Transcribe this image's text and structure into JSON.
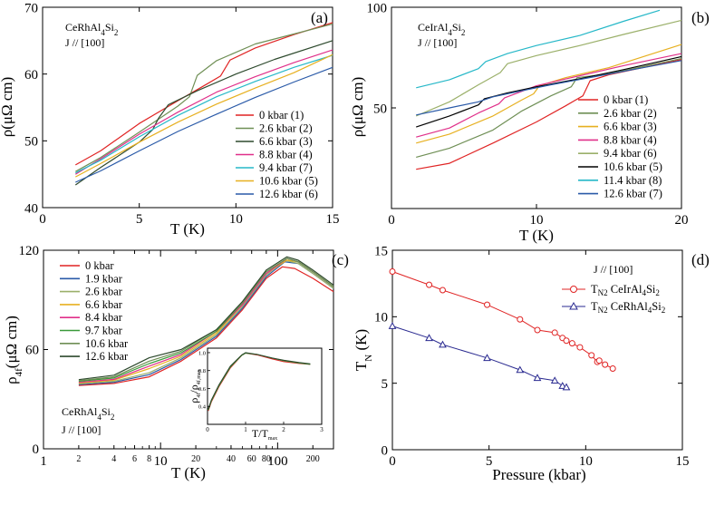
{
  "chart_data": [
    {
      "id": "a",
      "type": "line",
      "panel_label": "(a)",
      "title": "",
      "compound": "CeRhAl4Si2",
      "current": "J // [100]",
      "xlabel": "T (K)",
      "ylabel": "ρ(μΩ cm)",
      "xlim": [
        0,
        15
      ],
      "ylim": [
        40,
        70
      ],
      "xticks": [
        0,
        5,
        10,
        15
      ],
      "yticks": [
        40,
        50,
        60,
        70
      ],
      "legend": "bottom-right",
      "series": [
        {
          "name": "0 kbar (1)",
          "color": "#e02424",
          "x": [
            1.7,
            3,
            5,
            7,
            8.5,
            9.2,
            9.7,
            11,
            13,
            15
          ],
          "y": [
            46.4,
            48.5,
            52.6,
            56.0,
            58.5,
            59.7,
            62.1,
            63.9,
            65.9,
            67.7
          ]
        },
        {
          "name": "2.6 kbar (2)",
          "color": "#6f8f55",
          "x": [
            1.7,
            3,
            5,
            7,
            7.6,
            8.0,
            9,
            11,
            13,
            15
          ],
          "y": [
            45.4,
            47.5,
            51.3,
            55.2,
            56.6,
            59.8,
            62.0,
            64.5,
            66.0,
            67.5
          ]
        },
        {
          "name": "6.6 kbar (3)",
          "color": "#2e4a2e",
          "x": [
            1.7,
            3,
            5,
            5.7,
            6.0,
            6.5,
            8,
            10,
            12,
            15
          ],
          "y": [
            43.4,
            46.0,
            49.8,
            51.7,
            53.4,
            55.4,
            57.5,
            60.0,
            62.2,
            65.0
          ]
        },
        {
          "name": "8.8 kbar (4)",
          "color": "#e0308a",
          "x": [
            1.7,
            3,
            5,
            7,
            9,
            11,
            13,
            15
          ],
          "y": [
            45.0,
            47.3,
            51.0,
            54.3,
            57.3,
            59.6,
            61.7,
            63.6
          ]
        },
        {
          "name": "9.4 kbar (7)",
          "color": "#26b8c8",
          "x": [
            1.7,
            3,
            5,
            7,
            9,
            11,
            13,
            15
          ],
          "y": [
            45.2,
            47.1,
            50.6,
            53.8,
            56.6,
            58.9,
            61.0,
            62.8
          ]
        },
        {
          "name": "10.6 kbar (5)",
          "color": "#e7b020",
          "x": [
            1.7,
            3,
            5,
            7,
            9,
            11,
            13,
            15
          ],
          "y": [
            44.6,
            46.6,
            49.8,
            52.8,
            55.5,
            57.9,
            60.2,
            62.9
          ]
        },
        {
          "name": "12.6 kbar (6)",
          "color": "#2a5aa8",
          "x": [
            1.7,
            3,
            5,
            7,
            9,
            11,
            13,
            15
          ],
          "y": [
            43.8,
            45.5,
            48.5,
            51.4,
            54.0,
            56.5,
            58.8,
            61.0
          ]
        }
      ]
    },
    {
      "id": "b",
      "type": "line",
      "panel_label": "(b)",
      "title": "",
      "compound": "CeIrAl4Si2",
      "current": "J // [100]",
      "xlabel": "T (K)",
      "ylabel": "ρ(μΩ cm)",
      "xlim": [
        0,
        20
      ],
      "ylim": [
        0,
        100
      ],
      "xticks": [
        0,
        10,
        20
      ],
      "yticks": [
        50,
        100
      ],
      "legend": "right",
      "series": [
        {
          "name": "0 kbar (1)",
          "color": "#e02424",
          "x": [
            1.7,
            4,
            7,
            10,
            12,
            13.2,
            13.7,
            15,
            17,
            20
          ],
          "y": [
            19.5,
            22.5,
            32.5,
            43.0,
            51.0,
            56.0,
            63.5,
            66.5,
            69.5,
            74.0
          ]
        },
        {
          "name": "2.6 kbar (2)",
          "color": "#6f8f55",
          "x": [
            1.7,
            4,
            7,
            9,
            11,
            12.4,
            12.8,
            15,
            20
          ],
          "y": [
            25.5,
            30.0,
            39.0,
            48.5,
            56.0,
            60.5,
            65.0,
            67.0,
            74.5
          ]
        },
        {
          "name": "6.6 kbar (3)",
          "color": "#e7b020",
          "x": [
            1.7,
            4,
            7,
            9,
            9.8,
            10.2,
            12,
            15,
            20
          ],
          "y": [
            32.5,
            37.0,
            46.0,
            54.0,
            57.0,
            61.0,
            65.0,
            70.0,
            81.5
          ]
        },
        {
          "name": "8.8 kbar (4)",
          "color": "#e0308a",
          "x": [
            1.7,
            4,
            6,
            7.4,
            7.8,
            10,
            13,
            16,
            20
          ],
          "y": [
            35.5,
            40.0,
            47.5,
            52.0,
            55.0,
            61.0,
            66.0,
            71.0,
            77.0
          ]
        },
        {
          "name": "9.4 kbar (6)",
          "color": "#9bb06a",
          "x": [
            1.7,
            4,
            6,
            7.5,
            8.0,
            10,
            13,
            16,
            20
          ],
          "y": [
            46.0,
            53.0,
            61.5,
            67.5,
            72.0,
            76.0,
            81.0,
            86.5,
            93.5
          ]
        },
        {
          "name": "10.6 kbar (5)",
          "color": "#000000",
          "x": [
            1.7,
            4,
            6,
            6.4,
            8,
            10,
            13,
            16,
            20
          ],
          "y": [
            40.5,
            46.0,
            51.5,
            54.5,
            57.5,
            60.5,
            64.5,
            69.0,
            75.5
          ]
        },
        {
          "name": "11.4 kbar (8)",
          "color": "#26b8c8",
          "x": [
            1.7,
            4,
            6,
            6.5,
            8,
            10,
            13,
            16,
            18.5
          ],
          "y": [
            60.0,
            64.0,
            69.5,
            73.0,
            77.0,
            81.0,
            86.0,
            93.0,
            98.5
          ]
        },
        {
          "name": "12.6 kbar (7)",
          "color": "#2a5aa8",
          "x": [
            1.7,
            4,
            6,
            7,
            9,
            11,
            14,
            17,
            20
          ],
          "y": [
            46.5,
            50.0,
            53.0,
            55.5,
            58.5,
            61.5,
            65.5,
            69.5,
            73.5
          ]
        }
      ]
    },
    {
      "id": "c",
      "type": "line",
      "xscale": "log",
      "panel_label": "(c)",
      "title": "",
      "compound": "CeRhAl4Si2",
      "current": "J // [100]",
      "xlabel": "T (K)",
      "ylabel": "ρ4f(μΩ cm)",
      "xlim": [
        1,
        300
      ],
      "ylim": [
        0,
        120
      ],
      "xticks_major": [
        1,
        10,
        100
      ],
      "xticks_minor": [
        2,
        4,
        6,
        8,
        20,
        40,
        60,
        80,
        200
      ],
      "yticks": [
        0,
        60,
        120
      ],
      "legend": "top-left",
      "series": [
        {
          "name": "0 kbar",
          "color": "#e02424",
          "x": [
            2,
            4,
            8,
            15,
            30,
            50,
            80,
            110,
            140,
            200,
            300
          ],
          "y": [
            38.3,
            39.5,
            43.5,
            53,
            67,
            84,
            103,
            110,
            109,
            103,
            95
          ]
        },
        {
          "name": "1.9 kbar",
          "color": "#2a5aa8",
          "x": [
            2,
            4,
            8,
            15,
            30,
            50,
            80,
            115,
            150,
            200,
            300
          ],
          "y": [
            38.8,
            40.2,
            44.8,
            54,
            68,
            85,
            104,
            113,
            112,
            106,
            97
          ]
        },
        {
          "name": "2.6 kbar",
          "color": "#9bb06a",
          "x": [
            2,
            4,
            8,
            15,
            30,
            50,
            80,
            115,
            150,
            200,
            300
          ],
          "y": [
            39.3,
            40.8,
            46.0,
            55,
            69,
            86,
            105,
            114,
            112,
            106,
            97
          ]
        },
        {
          "name": "6.6 kbar",
          "color": "#e7b020",
          "x": [
            2,
            4,
            8,
            15,
            30,
            50,
            80,
            120,
            150,
            200,
            300
          ],
          "y": [
            39.8,
            41.5,
            48.5,
            56,
            70,
            87,
            106,
            114,
            113,
            107,
            98
          ]
        },
        {
          "name": "8.4 kbar",
          "color": "#e0308a",
          "x": [
            2,
            4,
            8,
            15,
            30,
            50,
            80,
            120,
            150,
            200,
            300
          ],
          "y": [
            40.2,
            42.0,
            50.0,
            57,
            71,
            87,
            106,
            115,
            113,
            107,
            98
          ]
        },
        {
          "name": "9.7 kbar",
          "color": "#3a9a3a",
          "x": [
            2,
            4,
            8,
            15,
            30,
            50,
            80,
            120,
            150,
            200,
            300
          ],
          "y": [
            40.8,
            42.8,
            51.5,
            58,
            71,
            88,
            107,
            115,
            113,
            107,
            98
          ]
        },
        {
          "name": "10.6 kbar",
          "color": "#6f8f55",
          "x": [
            2,
            4,
            8,
            15,
            30,
            50,
            80,
            120,
            150,
            200,
            300
          ],
          "y": [
            41.2,
            43.5,
            53.0,
            59,
            72,
            88,
            107,
            115,
            113,
            107,
            98
          ]
        },
        {
          "name": "12.6 kbar",
          "color": "#2e4a2e",
          "x": [
            2,
            4,
            8,
            15,
            30,
            50,
            80,
            120,
            150,
            200,
            300
          ],
          "y": [
            41.8,
            44.5,
            55.0,
            60,
            72,
            89,
            108,
            116,
            114,
            108,
            99
          ]
        }
      ],
      "inset": {
        "xlabel": "T/Tmax",
        "ylabel": "ρ4f/ρ4f,max",
        "xlim": [
          0,
          3
        ],
        "ylim": [
          0.2,
          1.05
        ],
        "xticks": [
          0,
          1,
          2,
          3
        ],
        "yticks": [
          0.4,
          0.6,
          0.8,
          1.0
        ],
        "series": [
          {
            "name": "0 kbar",
            "color": "#e02424",
            "x": [
              0.02,
              0.1,
              0.3,
              0.6,
              0.9,
              1.0,
              1.3,
              1.7,
              2.0,
              2.4,
              2.7
            ],
            "y": [
              0.35,
              0.45,
              0.62,
              0.83,
              0.97,
              0.995,
              0.975,
              0.93,
              0.9,
              0.88,
              0.87
            ]
          },
          {
            "name": "9.7 kbar",
            "color": "#3a9a3a",
            "x": [
              0.02,
              0.1,
              0.3,
              0.6,
              0.9,
              1.0,
              1.3,
              1.7,
              2.0,
              2.4,
              2.7
            ],
            "y": [
              0.36,
              0.46,
              0.63,
              0.84,
              0.97,
              0.995,
              0.98,
              0.94,
              0.91,
              0.885,
              0.87
            ]
          },
          {
            "name": "12.6 kbar",
            "color": "#2e4a2e",
            "x": [
              0.02,
              0.1,
              0.3,
              0.6,
              0.9,
              1.0,
              1.3,
              1.7,
              2.0,
              2.4,
              2.7
            ],
            "y": [
              0.37,
              0.47,
              0.64,
              0.85,
              0.975,
              1.0,
              0.98,
              0.94,
              0.915,
              0.89,
              0.875
            ]
          }
        ]
      }
    },
    {
      "id": "d",
      "type": "line",
      "markers": true,
      "panel_label": "(d)",
      "title": "",
      "current": "J // [100]",
      "xlabel": "Pressure (kbar)",
      "ylabel": "TN (K)",
      "xlim": [
        0,
        15
      ],
      "ylim": [
        0,
        15
      ],
      "xticks": [
        0,
        5,
        10,
        15
      ],
      "yticks": [
        0,
        5,
        10,
        15
      ],
      "legend": "top-right",
      "series": [
        {
          "name": "TN2 CeIrAl4Si2",
          "legend_main": "T",
          "legend_sub": "N2",
          "legend_rest": " CeIrAl",
          "legend_sub2": "4",
          "legend_rest2": "Si",
          "legend_sub3": "2",
          "color": "#e02424",
          "marker": "circle",
          "x": [
            0,
            1.9,
            2.6,
            4.9,
            6.6,
            7.5,
            8.4,
            8.8,
            9.0,
            9.3,
            9.7,
            10.3,
            10.6,
            10.7,
            11.0,
            11.4
          ],
          "y": [
            13.4,
            12.4,
            12.0,
            10.9,
            9.8,
            9.0,
            8.8,
            8.4,
            8.2,
            8.0,
            7.7,
            7.1,
            6.6,
            6.7,
            6.4,
            6.1
          ]
        },
        {
          "name": "TN2 CeRhAl4Si2",
          "legend_main": "T",
          "legend_sub": "N2",
          "legend_rest": " CeRhAl",
          "legend_sub2": "4",
          "legend_rest2": "Si",
          "legend_sub3": "2",
          "color": "#2a2a90",
          "marker": "triangle",
          "x": [
            0,
            1.9,
            2.6,
            4.9,
            6.6,
            7.5,
            8.4,
            8.8,
            9.0
          ],
          "y": [
            9.3,
            8.4,
            7.9,
            6.9,
            6.0,
            5.4,
            5.2,
            4.8,
            4.7
          ]
        }
      ]
    }
  ]
}
